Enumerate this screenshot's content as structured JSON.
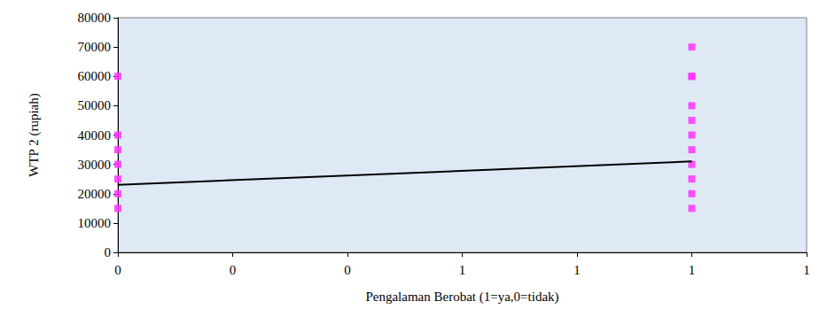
{
  "chart_data": {
    "type": "scatter",
    "xlabel": "Pengalaman Berobat (1=ya,0=tidak)",
    "ylabel": "WTP 2 (rupiah)",
    "xlim": [
      0,
      1.2
    ],
    "xticks": [
      {
        "value": 0,
        "label": "0"
      },
      {
        "value": 0.2,
        "label": "0"
      },
      {
        "value": 0.4,
        "label": "0"
      },
      {
        "value": 0.6,
        "label": "1"
      },
      {
        "value": 0.8,
        "label": "1"
      },
      {
        "value": 1,
        "label": "1"
      },
      {
        "value": 1.2,
        "label": "1"
      }
    ],
    "ylim": [
      0,
      80000
    ],
    "yticks": [
      0,
      10000,
      20000,
      30000,
      40000,
      50000,
      60000,
      70000,
      80000
    ],
    "grid": false,
    "series": [
      {
        "type": "scatter",
        "color": "#ff33ff",
        "marker": "square",
        "x": [
          0,
          0,
          0,
          0,
          0,
          0,
          0,
          1,
          1,
          1,
          1,
          1,
          1,
          1,
          1,
          1,
          1,
          1
        ],
        "values": [
          60000,
          40000,
          35000,
          30000,
          25000,
          20000,
          15000,
          70000,
          60000,
          60000,
          50000,
          45000,
          40000,
          35000,
          30000,
          25000,
          20000,
          15000
        ]
      },
      {
        "type": "line",
        "color": "#000000",
        "marker": "none",
        "line_style": "solid",
        "x": [
          0,
          1
        ],
        "values": [
          23000,
          31000
        ]
      }
    ]
  }
}
